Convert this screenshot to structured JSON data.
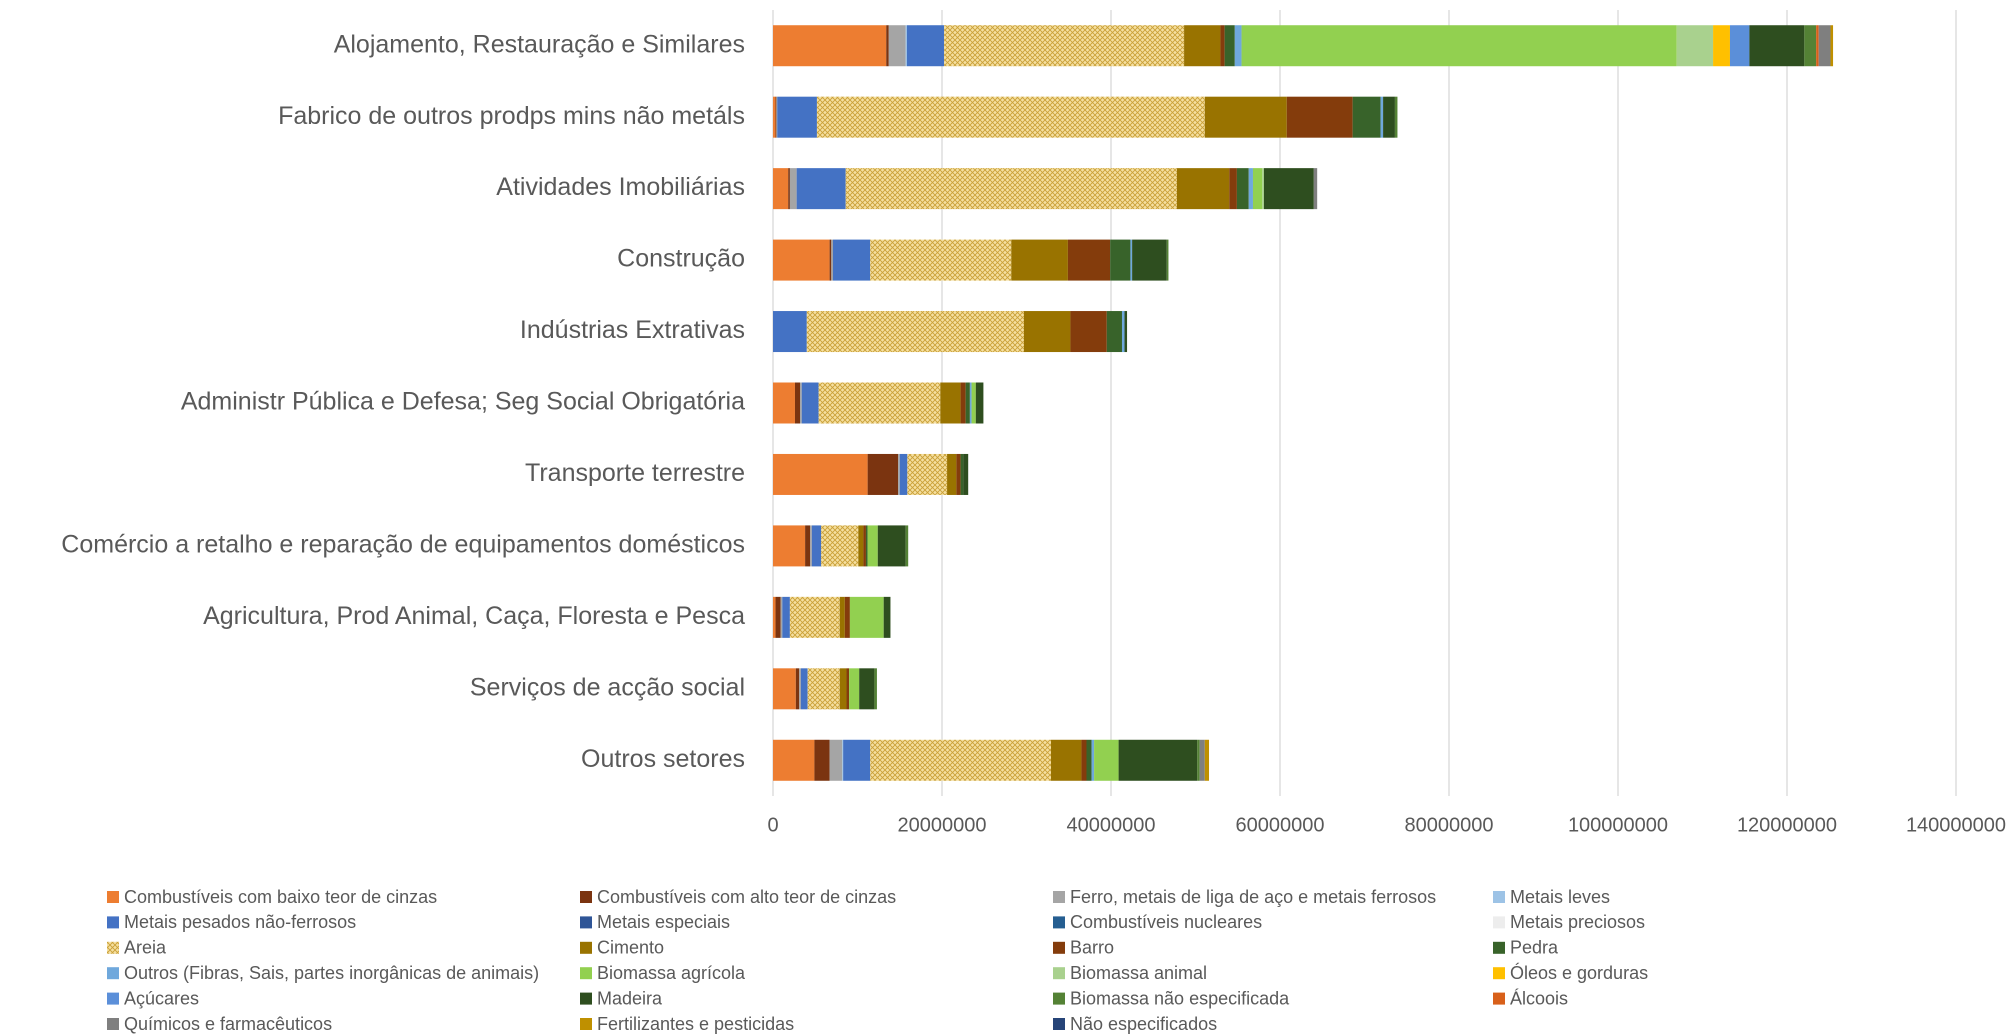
{
  "chart_data": {
    "type": "stacked-barh",
    "categories": [
      "Alojamento, Restauração e Similares",
      "Fabrico de outros prodps mins não metáls",
      "Atividades Imobiliárias",
      "Construção",
      "Indústrias Extrativas ",
      "Administr Pública e Defesa; Seg Social Obrigatória",
      "Transporte terrestre",
      "Comércio a retalho e reparação de equipamentos domésticos",
      "Agricultura, Prod Animal, Caça, Floresta e Pesca",
      "Serviços de acção social",
      "Outros setores"
    ],
    "xlim": [
      0,
      140000000
    ],
    "xticks": [
      0,
      20000000,
      40000000,
      60000000,
      80000000,
      100000000,
      120000000,
      140000000
    ],
    "grid": true,
    "legend": "bottom",
    "series": [
      {
        "name": "Combustíveis com baixo teor de cinzas",
        "color": "#ED7D31",
        "values": [
          13400000,
          300000,
          1800000,
          6700000,
          0,
          2600000,
          11200000,
          3800000,
          300000,
          2700000,
          4900000
        ]
      },
      {
        "name": "Combustíveis com alto teor de cinzas",
        "color": "#7B3410",
        "values": [
          300000,
          100000,
          200000,
          200000,
          0,
          600000,
          3600000,
          600000,
          600000,
          400000,
          1800000
        ]
      },
      {
        "name": "Ferro, metais de liga de aço e metais ferrosos",
        "color": "#A5A5A5",
        "values": [
          2000000,
          100000,
          800000,
          200000,
          0,
          200000,
          200000,
          200000,
          200000,
          200000,
          1500000
        ]
      },
      {
        "name": "Metais leves",
        "color": "#9DC3E6",
        "values": [
          150000,
          0,
          0,
          0,
          0,
          0,
          0,
          0,
          0,
          0,
          100000
        ]
      },
      {
        "name": "Metais pesados não-ferrosos",
        "color": "#4472C4",
        "values": [
          4400000,
          4700000,
          5800000,
          4400000,
          4000000,
          2000000,
          900000,
          1100000,
          900000,
          800000,
          3200000
        ]
      },
      {
        "name": "Metais especiais",
        "color": "#2F5597",
        "values": [
          0,
          0,
          0,
          0,
          0,
          0,
          0,
          0,
          0,
          0,
          0
        ]
      },
      {
        "name": "Combustíveis nucleares",
        "color": "#255E91",
        "values": [
          0,
          0,
          0,
          0,
          0,
          0,
          0,
          0,
          0,
          0,
          0
        ]
      },
      {
        "name": "Metais preciosos",
        "color": "#EDEDED",
        "values": [
          0,
          0,
          0,
          0,
          0,
          0,
          0,
          0,
          0,
          0,
          0
        ]
      },
      {
        "name": "Areia",
        "color": "#F5DFA0",
        "pattern": "dotted",
        "values": [
          28400000,
          45900000,
          39200000,
          16700000,
          25700000,
          14400000,
          4700000,
          4400000,
          5900000,
          3800000,
          21400000
        ]
      },
      {
        "name": "Cimento",
        "color": "#997300",
        "values": [
          4300000,
          9700000,
          6200000,
          6700000,
          5500000,
          2400000,
          1100000,
          600000,
          600000,
          800000,
          3600000
        ]
      },
      {
        "name": "Barro",
        "color": "#843C0C",
        "values": [
          500000,
          7800000,
          900000,
          5000000,
          4300000,
          600000,
          500000,
          300000,
          600000,
          300000,
          600000
        ]
      },
      {
        "name": "Pedra",
        "color": "#38632A",
        "values": [
          1200000,
          3300000,
          1400000,
          2400000,
          1800000,
          500000,
          300000,
          200000,
          0,
          0,
          600000
        ]
      },
      {
        "name": "Outros (Fibras, Sais, partes inorgânicas de animais)",
        "color": "#6FA8DC",
        "values": [
          800000,
          300000,
          500000,
          200000,
          300000,
          200000,
          0,
          0,
          0,
          0,
          300000
        ]
      },
      {
        "name": "Biomassa agrícola",
        "color": "#92D050",
        "values": [
          51500000,
          0,
          1100000,
          0,
          0,
          500000,
          0,
          1200000,
          4000000,
          1200000,
          2900000
        ]
      },
      {
        "name": "Biomassa animal",
        "color": "#A9D18E",
        "values": [
          4300000,
          0,
          200000,
          0,
          0,
          0,
          0,
          0,
          0,
          0,
          0
        ]
      },
      {
        "name": "Óleos e gorduras",
        "color": "#FFC000",
        "values": [
          2000000,
          0,
          0,
          0,
          0,
          0,
          0,
          0,
          0,
          0,
          0
        ]
      },
      {
        "name": "Açúcares",
        "color": "#5B8FD9",
        "values": [
          2300000,
          0,
          0,
          0,
          0,
          0,
          0,
          0,
          0,
          0,
          0
        ]
      },
      {
        "name": "Madeira",
        "color": "#2E4E1F",
        "values": [
          6500000,
          1400000,
          5900000,
          4100000,
          300000,
          900000,
          600000,
          3300000,
          800000,
          1800000,
          9300000
        ]
      },
      {
        "name": "Biomassa não especificada",
        "color": "#548235",
        "values": [
          1400000,
          300000,
          0,
          200000,
          0,
          0,
          0,
          300000,
          0,
          300000,
          300000
        ]
      },
      {
        "name": "Álcoois",
        "color": "#D8601A",
        "values": [
          300000,
          0,
          0,
          0,
          0,
          0,
          0,
          0,
          0,
          0,
          0
        ]
      },
      {
        "name": "Químicos e farmacêuticos",
        "color": "#7F7F7F",
        "values": [
          1400000,
          0,
          400000,
          0,
          0,
          0,
          0,
          0,
          0,
          0,
          600000
        ]
      },
      {
        "name": "Fertilizantes e pesticidas",
        "color": "#BF9000",
        "values": [
          300000,
          0,
          0,
          0,
          0,
          0,
          0,
          0,
          0,
          0,
          500000
        ]
      },
      {
        "name": "Não especificados",
        "color": "#264478",
        "values": [
          0,
          0,
          0,
          0,
          0,
          0,
          0,
          0,
          0,
          0,
          0
        ]
      }
    ]
  }
}
